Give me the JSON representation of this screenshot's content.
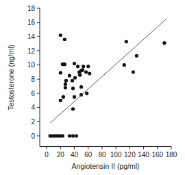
{
  "chart_data": {
    "type": "scatter",
    "x_label": "Angiotensin II (pg/ml)",
    "y_label": "Testosterone (ng/ml)",
    "xlim": [
      -10,
      180
    ],
    "xticks": [
      0,
      20,
      40,
      60,
      80,
      100,
      120,
      140,
      160,
      180
    ],
    "ylim": [
      -1.5,
      18
    ],
    "yticks": [
      0,
      2,
      4,
      6,
      8,
      10,
      12,
      14,
      16,
      18
    ],
    "grid": false,
    "series": [
      {
        "type": "scatter",
        "color": "#111111",
        "marker": "circle",
        "x": [
          5,
          8,
          11,
          14,
          17,
          20,
          23,
          33,
          38,
          43,
          20,
          26,
          20,
          23,
          26,
          20,
          24,
          27,
          28,
          27,
          33,
          37,
          38,
          40,
          41,
          38,
          40,
          45,
          47,
          48,
          50,
          50,
          50,
          53,
          52,
          57,
          58,
          60,
          62,
          112,
          115,
          125,
          130,
          170
        ],
        "values": [
          0,
          0,
          0,
          0,
          0,
          0,
          0,
          0,
          0,
          0,
          14.2,
          13.6,
          8.9,
          10.1,
          10.1,
          5.0,
          5.5,
          7.3,
          7.8,
          6.8,
          8.5,
          7.8,
          6.7,
          10.2,
          8.2,
          3.8,
          5.5,
          9.8,
          9.0,
          8.6,
          9.2,
          6.9,
          5.8,
          9.8,
          9.3,
          9.0,
          6.0,
          9.8,
          8.8,
          10.0,
          13.3,
          9.0,
          11.3,
          13.1
        ]
      },
      {
        "type": "line",
        "color": "#555555",
        "line_style": "solid",
        "x": [
          5,
          173
        ],
        "values": [
          1.8,
          16.5
        ]
      }
    ]
  }
}
